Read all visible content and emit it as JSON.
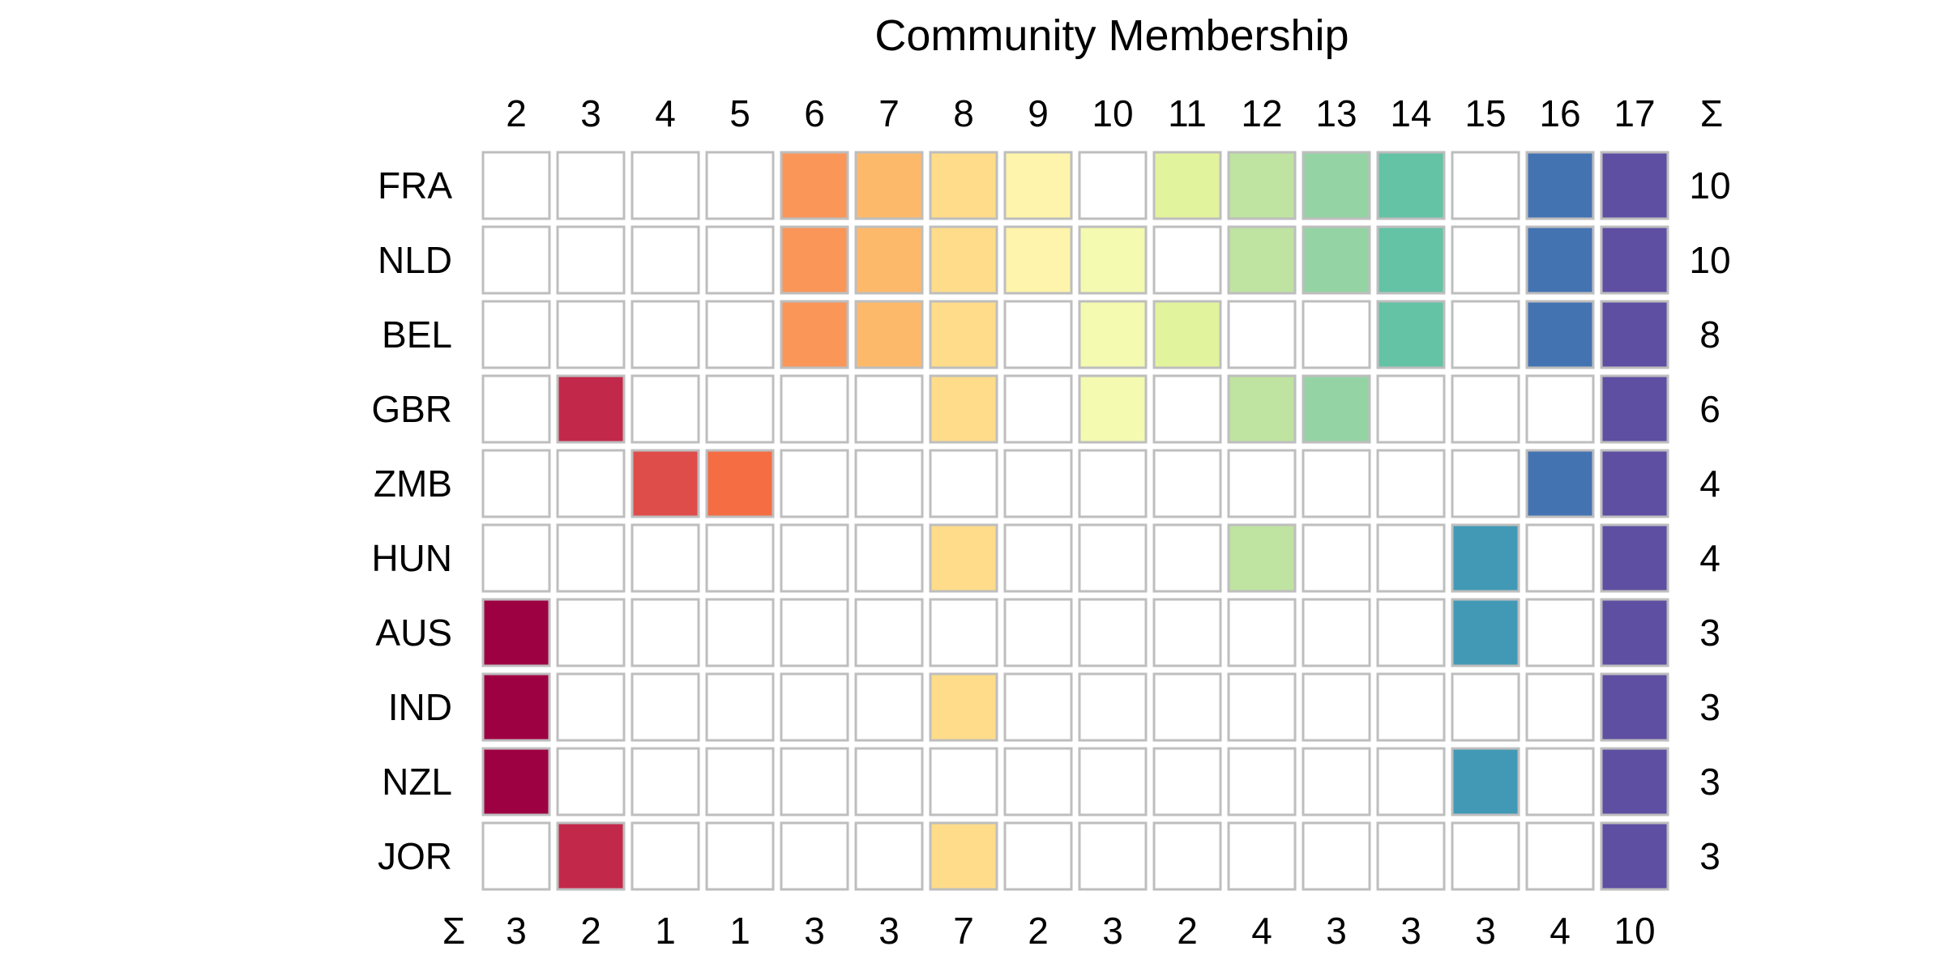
{
  "chart_data": {
    "type": "heatmap",
    "title": "Community Membership",
    "sum_label": "Σ",
    "columns": [
      "2",
      "3",
      "4",
      "5",
      "6",
      "7",
      "8",
      "9",
      "10",
      "11",
      "12",
      "13",
      "14",
      "15",
      "16",
      "17"
    ],
    "rows": [
      "FRA",
      "NLD",
      "BEL",
      "GBR",
      "ZMB",
      "HUN",
      "AUS",
      "IND",
      "NZL",
      "JOR"
    ],
    "membership": [
      [
        0,
        0,
        0,
        0,
        1,
        1,
        1,
        1,
        0,
        1,
        1,
        1,
        1,
        0,
        1,
        1
      ],
      [
        0,
        0,
        0,
        0,
        1,
        1,
        1,
        1,
        1,
        0,
        1,
        1,
        1,
        0,
        1,
        1
      ],
      [
        0,
        0,
        0,
        0,
        1,
        1,
        1,
        0,
        1,
        1,
        0,
        0,
        1,
        0,
        1,
        1
      ],
      [
        0,
        1,
        0,
        0,
        0,
        0,
        1,
        0,
        1,
        0,
        1,
        1,
        0,
        0,
        0,
        1
      ],
      [
        0,
        0,
        1,
        1,
        0,
        0,
        0,
        0,
        0,
        0,
        0,
        0,
        0,
        0,
        1,
        1
      ],
      [
        0,
        0,
        0,
        0,
        0,
        0,
        1,
        0,
        0,
        0,
        1,
        0,
        0,
        1,
        0,
        1
      ],
      [
        1,
        0,
        0,
        0,
        0,
        0,
        0,
        0,
        0,
        0,
        0,
        0,
        0,
        1,
        0,
        1
      ],
      [
        1,
        0,
        0,
        0,
        0,
        0,
        1,
        0,
        0,
        0,
        0,
        0,
        0,
        0,
        0,
        1
      ],
      [
        1,
        0,
        0,
        0,
        0,
        0,
        0,
        0,
        0,
        0,
        0,
        0,
        0,
        1,
        0,
        1
      ],
      [
        0,
        1,
        0,
        0,
        0,
        0,
        1,
        0,
        0,
        0,
        0,
        0,
        0,
        0,
        0,
        1
      ]
    ],
    "row_totals": [
      "10",
      "10",
      "8",
      "6",
      "4",
      "4",
      "3",
      "3",
      "3",
      "3"
    ],
    "column_totals": [
      "3",
      "2",
      "1",
      "1",
      "3",
      "3",
      "7",
      "2",
      "3",
      "2",
      "4",
      "3",
      "3",
      "3",
      "4",
      "10"
    ],
    "column_colors": [
      "#9E0142",
      "#C2284A",
      "#DF4D4B",
      "#F46D43",
      "#F99658",
      "#FDB96A",
      "#FEDC89",
      "#FEF4AB",
      "#F4FAB0",
      "#E2F39E",
      "#BFE3A1",
      "#94D4A4",
      "#64C2A5",
      "#4299B6",
      "#4473B2",
      "#5E4FA2"
    ],
    "empty_color": "#FFFFFF",
    "border_color": "#BEBEBE"
  }
}
